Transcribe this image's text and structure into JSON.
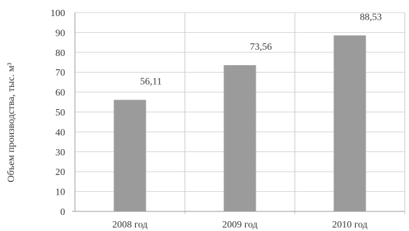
{
  "chart_data": {
    "type": "bar",
    "title": "",
    "xlabel": "",
    "ylabel": "Объем производства, тыс. м³",
    "categories": [
      "2008 год",
      "2009 год",
      "2010 год"
    ],
    "values": [
      56.11,
      73.56,
      88.53
    ],
    "data_labels": [
      "56,11",
      "73,56",
      "88,53"
    ],
    "ylim": [
      0,
      100
    ],
    "yticks": [
      0,
      10,
      20,
      30,
      40,
      50,
      60,
      70,
      80,
      90,
      100
    ],
    "grid": true,
    "legend": "none",
    "colors": {
      "bar": "#9b9b9b",
      "grid": "#d4d4d4",
      "text": "#3a3a3a"
    }
  }
}
